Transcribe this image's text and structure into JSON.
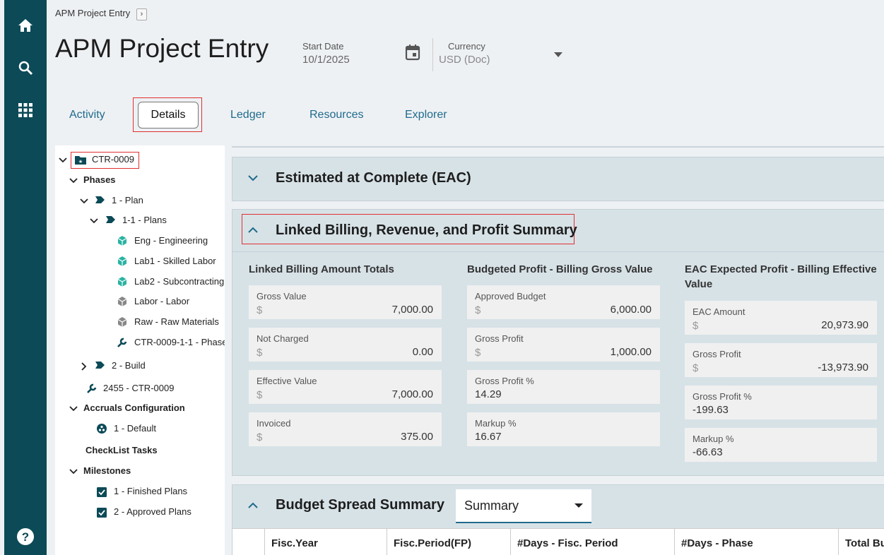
{
  "breadcrumb": "APM Project Entry",
  "header": {
    "title": "APM Project Entry",
    "start_date": {
      "label": "Start Date",
      "value": "10/1/2025"
    },
    "currency": {
      "label": "Currency",
      "value": "USD (Doc)"
    }
  },
  "tabs": [
    "Activity",
    "Details",
    "Ledger",
    "Resources",
    "Explorer"
  ],
  "tree": [
    "CTR-0009",
    "Phases",
    "1 - Plan",
    "1-1 - Plans",
    "Eng - Engineering",
    "Lab1 - Skilled Labor",
    "Lab2 - Subcontracting",
    "Labor - Labor",
    "Raw - Raw Materials",
    "CTR-0009-1-1 - Phase",
    "2 - Build",
    "2455 - CTR-0009",
    "Accruals Configuration",
    "1 - Default",
    "CheckList Tasks",
    "Milestones",
    "1 - Finished Plans",
    "2 - Approved Plans"
  ],
  "sections": [
    {
      "title": "Estimated at Complete (EAC)"
    },
    {
      "title": "Linked Billing, Revenue, and Profit Summary",
      "groups": [
        {
          "title": "Linked Billing Amount Totals",
          "fields": [
            {
              "label": "Gross Value",
              "symbol": "$",
              "value": "7,000.00"
            },
            {
              "label": "Not Charged",
              "symbol": "$",
              "value": "0.00"
            },
            {
              "label": "Effective Value",
              "symbol": "$",
              "value": "7,000.00"
            },
            {
              "label": "Invoiced",
              "symbol": "$",
              "value": "375.00"
            }
          ]
        },
        {
          "title": "Budgeted Profit - Billing Gross Value",
          "fields": [
            {
              "label": "Approved Budget",
              "symbol": "$",
              "value": "6,000.00"
            },
            {
              "label": "Gross Profit",
              "symbol": "$",
              "value": "1,000.00"
            },
            {
              "label": "Gross Profit %",
              "value": "14.29"
            },
            {
              "label": "Markup %",
              "value": "16.67"
            }
          ]
        },
        {
          "title": "EAC Expected Profit - Billing Effective Value",
          "fields": [
            {
              "label": "EAC Amount",
              "symbol": "$",
              "value": "20,973.90"
            },
            {
              "label": "Gross Profit",
              "symbol": "$",
              "value": "-13,973.90"
            },
            {
              "label": "Gross Profit %",
              "value": "-199.63"
            },
            {
              "label": "Markup %",
              "value": "-66.63"
            }
          ]
        }
      ]
    },
    {
      "title": "Budget Spread Summary",
      "view": "Summary",
      "columns": [
        "Fisc.Year",
        "Fisc.Period(FP)",
        "#Days - Fisc. Period",
        "#Days - Phase",
        "Total Bu"
      ]
    }
  ]
}
